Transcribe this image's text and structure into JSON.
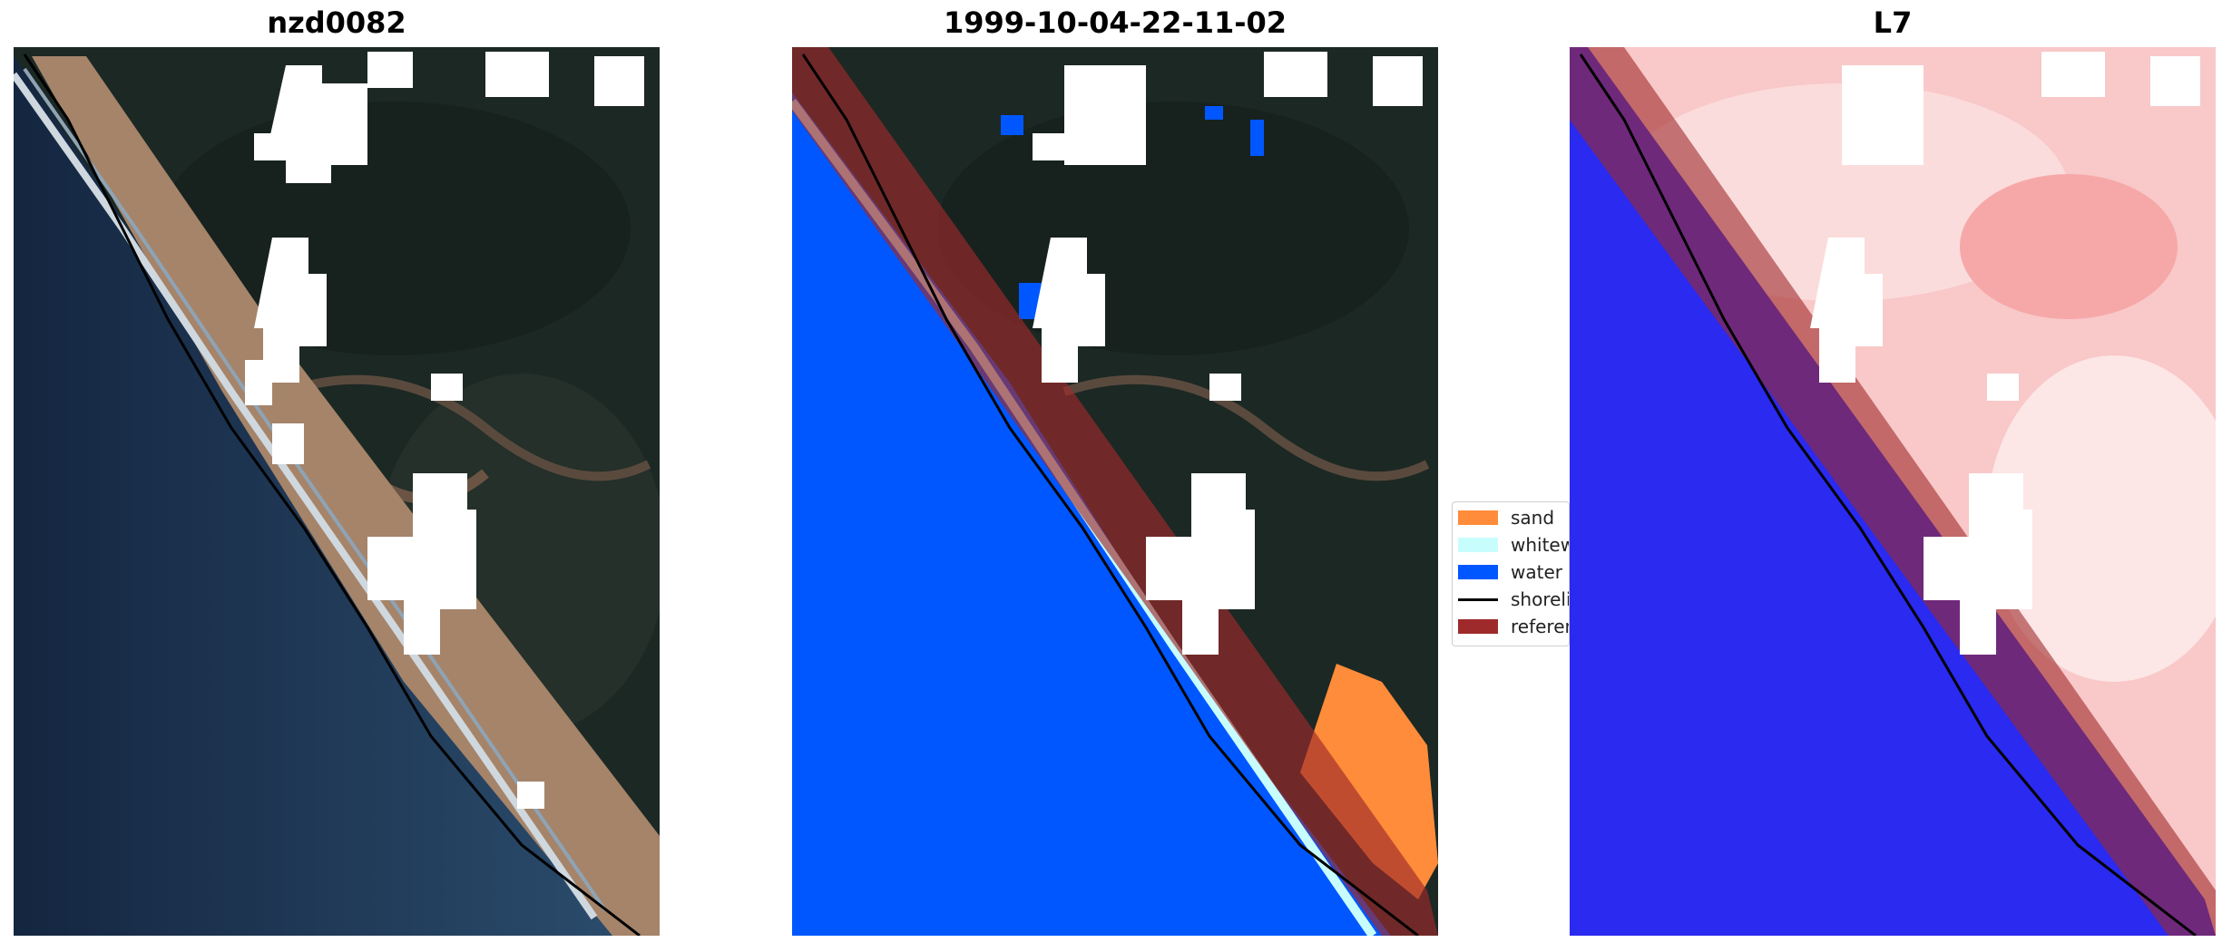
{
  "figure": {
    "panels": [
      {
        "title": "nzd0082",
        "kind": "rgb-satellite"
      },
      {
        "title": "1999-10-04-22-11-02",
        "kind": "classified"
      },
      {
        "title": "L7",
        "kind": "mndwi-bwr"
      }
    ],
    "legend": {
      "items": [
        {
          "label": "sand",
          "color": "#ff8c3a",
          "shape": "patch"
        },
        {
          "label": "whitewater",
          "color": "#c8fdfd",
          "shape": "patch"
        },
        {
          "label": "water",
          "color": "#0057ff",
          "shape": "patch"
        },
        {
          "label": "shoreline",
          "color": "#000000",
          "shape": "line"
        },
        {
          "label": "reference",
          "color": "#9e2a2b",
          "shape": "patch"
        }
      ]
    },
    "colors": {
      "ocean_deep": "#162a45",
      "ocean_shallow": "#2b4f72",
      "land_dark": "#1d2a26",
      "beach_sand": "#b88f72",
      "cloud_mask": "#ffffff",
      "water_class": "#0057ff",
      "reference_buffer": "#9e2a2b",
      "index_water": "#2a2af0",
      "index_land": "#f9c8c8"
    }
  }
}
